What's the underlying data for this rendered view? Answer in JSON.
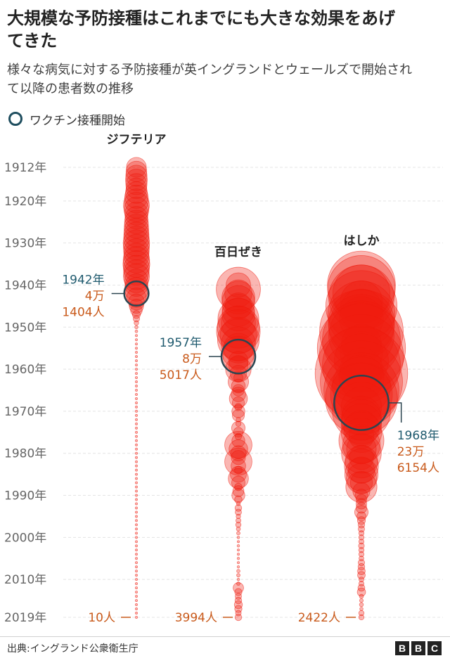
{
  "title": "大規模な予防接種はこれまでにも大きな効果をあげてきた",
  "subtitle": "様々な病気に対する予防接種が英イングランドとウェールズで開始されて以降の患者数の推移",
  "legend": {
    "label": "ワクチン接種開始"
  },
  "source": "出典:イングランド公衆衛生庁",
  "logo": [
    "B",
    "B",
    "C"
  ],
  "colors": {
    "bubble": "#ee1c0e",
    "annotation_blue": "#1f5a6e",
    "annotation_orange": "#c95a1b",
    "ring": "#2c4550",
    "axis_text": "#666666"
  },
  "chart_data": {
    "type": "scatter",
    "yaxis": {
      "ticks": [
        1912,
        1920,
        1930,
        1940,
        1950,
        1960,
        1970,
        1980,
        1990,
        2000,
        2010,
        2019
      ],
      "tick_labels": [
        "1912年",
        "1920年",
        "1930年",
        "1940年",
        "1950年",
        "1960年",
        "1970年",
        "1980年",
        "1990年",
        "2000年",
        "2010年",
        "2019年"
      ],
      "ylim": [
        1912,
        2019
      ]
    },
    "series": [
      {
        "name": "ジフテリア",
        "vaccine_year": 1942,
        "vaccine_label": [
          "1942年",
          "4万",
          "1404人"
        ],
        "end_label": "10人",
        "points": [
          [
            1912,
            35000
          ],
          [
            1913,
            38000
          ],
          [
            1914,
            40000
          ],
          [
            1915,
            42000
          ],
          [
            1916,
            40000
          ],
          [
            1917,
            38000
          ],
          [
            1918,
            42000
          ],
          [
            1919,
            48000
          ],
          [
            1920,
            52000
          ],
          [
            1921,
            60000
          ],
          [
            1922,
            55000
          ],
          [
            1923,
            48000
          ],
          [
            1924,
            46000
          ],
          [
            1925,
            50000
          ],
          [
            1926,
            52000
          ],
          [
            1927,
            54000
          ],
          [
            1928,
            56000
          ],
          [
            1929,
            58000
          ],
          [
            1930,
            62000
          ],
          [
            1931,
            60000
          ],
          [
            1932,
            58000
          ],
          [
            1933,
            56000
          ],
          [
            1934,
            62000
          ],
          [
            1935,
            64000
          ],
          [
            1936,
            60000
          ],
          [
            1937,
            58000
          ],
          [
            1938,
            60000
          ],
          [
            1939,
            50000
          ],
          [
            1940,
            45000
          ],
          [
            1941,
            50000
          ],
          [
            1942,
            41404
          ],
          [
            1943,
            34000
          ],
          [
            1944,
            23000
          ],
          [
            1945,
            18000
          ],
          [
            1946,
            12000
          ],
          [
            1947,
            5600
          ],
          [
            1948,
            3600
          ],
          [
            1949,
            1900
          ],
          [
            1950,
            960
          ],
          [
            1951,
            660
          ],
          [
            1952,
            380
          ],
          [
            1953,
            260
          ],
          [
            1954,
            180
          ],
          [
            1955,
            160
          ],
          [
            1956,
            53
          ],
          [
            1957,
            37
          ],
          [
            1958,
            80
          ],
          [
            1959,
            102
          ],
          [
            1960,
            49
          ],
          [
            1961,
            51
          ],
          [
            1962,
            16
          ],
          [
            1963,
            33
          ],
          [
            1964,
            20
          ],
          [
            1965,
            25
          ],
          [
            1966,
            12
          ],
          [
            1967,
            10
          ],
          [
            1968,
            15
          ],
          [
            1969,
            11
          ],
          [
            1970,
            22
          ],
          [
            1971,
            16
          ],
          [
            1972,
            5
          ],
          [
            1973,
            2
          ],
          [
            1974,
            6
          ],
          [
            1975,
            5
          ],
          [
            1976,
            3
          ],
          [
            1977,
            4
          ],
          [
            1978,
            5
          ],
          [
            1979,
            2
          ],
          [
            1980,
            5
          ],
          [
            1981,
            3
          ],
          [
            1982,
            2
          ],
          [
            1983,
            5
          ],
          [
            1984,
            3
          ],
          [
            1985,
            2
          ],
          [
            1986,
            4
          ],
          [
            1987,
            3
          ],
          [
            1988,
            2
          ],
          [
            1989,
            3
          ],
          [
            1990,
            2
          ],
          [
            1991,
            3
          ],
          [
            1992,
            4
          ],
          [
            1993,
            2
          ],
          [
            1994,
            3
          ],
          [
            1995,
            2
          ],
          [
            1996,
            4
          ],
          [
            1997,
            3
          ],
          [
            1998,
            2
          ],
          [
            1999,
            3
          ],
          [
            2000,
            3
          ],
          [
            2001,
            4
          ],
          [
            2002,
            3
          ],
          [
            2003,
            4
          ],
          [
            2004,
            3
          ],
          [
            2005,
            4
          ],
          [
            2006,
            5
          ],
          [
            2007,
            5
          ],
          [
            2008,
            6
          ],
          [
            2009,
            7
          ],
          [
            2010,
            8
          ],
          [
            2011,
            9
          ],
          [
            2012,
            8
          ],
          [
            2013,
            9
          ],
          [
            2014,
            9
          ],
          [
            2015,
            10
          ],
          [
            2016,
            9
          ],
          [
            2017,
            10
          ],
          [
            2018,
            10
          ],
          [
            2019,
            10
          ]
        ]
      },
      {
        "name": "百日ぜき",
        "vaccine_year": 1957,
        "vaccine_label": [
          "1957年",
          "8万",
          "5017人"
        ],
        "end_label": "3994人",
        "points": [
          [
            1940,
            53500
          ],
          [
            1941,
            173000
          ],
          [
            1942,
            66000
          ],
          [
            1943,
            96000
          ],
          [
            1944,
            95000
          ],
          [
            1945,
            62000
          ],
          [
            1946,
            92000
          ],
          [
            1947,
            95000
          ],
          [
            1948,
            148000
          ],
          [
            1949,
            104000
          ],
          [
            1950,
            157000
          ],
          [
            1951,
            169000
          ],
          [
            1952,
            118000
          ],
          [
            1953,
            154000
          ],
          [
            1954,
            104000
          ],
          [
            1955,
            79000
          ],
          [
            1956,
            92000
          ],
          [
            1957,
            85017
          ],
          [
            1958,
            33000
          ],
          [
            1959,
            33000
          ],
          [
            1960,
            58000
          ],
          [
            1961,
            24000
          ],
          [
            1962,
            7500
          ],
          [
            1963,
            37000
          ],
          [
            1964,
            17000
          ],
          [
            1965,
            12000
          ],
          [
            1966,
            19000
          ],
          [
            1967,
            29000
          ],
          [
            1968,
            13000
          ],
          [
            1969,
            4800
          ],
          [
            1970,
            15000
          ],
          [
            1971,
            13000
          ],
          [
            1972,
            1900
          ],
          [
            1973,
            2400
          ],
          [
            1974,
            16000
          ],
          [
            1975,
            8600
          ],
          [
            1976,
            4000
          ],
          [
            1977,
            15000
          ],
          [
            1978,
            66000
          ],
          [
            1979,
            31000
          ],
          [
            1980,
            21000
          ],
          [
            1981,
            18000
          ],
          [
            1982,
            66000
          ],
          [
            1983,
            19000
          ],
          [
            1984,
            5200
          ],
          [
            1985,
            23000
          ],
          [
            1986,
            36000
          ],
          [
            1987,
            16000
          ],
          [
            1988,
            5000
          ],
          [
            1989,
            11000
          ],
          [
            1990,
            15000
          ],
          [
            1991,
            5000
          ],
          [
            1992,
            1300
          ],
          [
            1993,
            4000
          ],
          [
            1994,
            3500
          ],
          [
            1995,
            1800
          ],
          [
            1996,
            2200
          ],
          [
            1997,
            2500
          ],
          [
            1998,
            1500
          ],
          [
            1999,
            1100
          ],
          [
            2000,
            600
          ],
          [
            2001,
            450
          ],
          [
            2002,
            560
          ],
          [
            2003,
            440
          ],
          [
            2004,
            480
          ],
          [
            2005,
            530
          ],
          [
            2006,
            460
          ],
          [
            2007,
            510
          ],
          [
            2008,
            1000
          ],
          [
            2009,
            1100
          ],
          [
            2010,
            540
          ],
          [
            2011,
            1100
          ],
          [
            2012,
            9700
          ],
          [
            2013,
            4600
          ],
          [
            2014,
            3600
          ],
          [
            2015,
            4000
          ],
          [
            2016,
            5800
          ],
          [
            2017,
            4700
          ],
          [
            2018,
            2900
          ],
          [
            2019,
            3994
          ]
        ]
      },
      {
        "name": "はしか",
        "vaccine_year": 1968,
        "vaccine_label": [
          "1968年",
          "23万",
          "6154人"
        ],
        "end_label": "2422人",
        "points": [
          [
            1940,
            410000
          ],
          [
            1941,
            405000
          ],
          [
            1942,
            290000
          ],
          [
            1943,
            380000
          ],
          [
            1944,
            158000
          ],
          [
            1945,
            450000
          ],
          [
            1946,
            160000
          ],
          [
            1947,
            400000
          ],
          [
            1948,
            170000
          ],
          [
            1949,
            390000
          ],
          [
            1950,
            380000
          ],
          [
            1951,
            620000
          ],
          [
            1952,
            380000
          ],
          [
            1953,
            540000
          ],
          [
            1954,
            140000
          ],
          [
            1955,
            690000
          ],
          [
            1956,
            160000
          ],
          [
            1957,
            630000
          ],
          [
            1958,
            260000
          ],
          [
            1959,
            540000
          ],
          [
            1960,
            160000
          ],
          [
            1961,
            760000
          ],
          [
            1962,
            180000
          ],
          [
            1963,
            600000
          ],
          [
            1964,
            300000
          ],
          [
            1965,
            500000
          ],
          [
            1966,
            340000
          ],
          [
            1967,
            460000
          ],
          [
            1968,
            236154
          ],
          [
            1969,
            145000
          ],
          [
            1970,
            300000
          ],
          [
            1971,
            135000
          ],
          [
            1972,
            145000
          ],
          [
            1973,
            145000
          ],
          [
            1974,
            110000
          ],
          [
            1975,
            145000
          ],
          [
            1976,
            55000
          ],
          [
            1977,
            180000
          ],
          [
            1978,
            125000
          ],
          [
            1979,
            78000
          ],
          [
            1980,
            140000
          ],
          [
            1981,
            53000
          ],
          [
            1982,
            94000
          ],
          [
            1983,
            103000
          ],
          [
            1984,
            62000
          ],
          [
            1985,
            98000
          ],
          [
            1986,
            82000
          ],
          [
            1987,
            43000
          ],
          [
            1988,
            86000
          ],
          [
            1989,
            26000
          ],
          [
            1990,
            14000
          ],
          [
            1991,
            10000
          ],
          [
            1992,
            10000
          ],
          [
            1993,
            10000
          ],
          [
            1994,
            16000
          ],
          [
            1995,
            7500
          ],
          [
            1996,
            5600
          ],
          [
            1997,
            3900
          ],
          [
            1998,
            3600
          ],
          [
            1999,
            2400
          ],
          [
            2000,
            2400
          ],
          [
            2001,
            2300
          ],
          [
            2002,
            3000
          ],
          [
            2003,
            2500
          ],
          [
            2004,
            2400
          ],
          [
            2005,
            2100
          ],
          [
            2006,
            3700
          ],
          [
            2007,
            4000
          ],
          [
            2008,
            5100
          ],
          [
            2009,
            5200
          ],
          [
            2010,
            2200
          ],
          [
            2011,
            2300
          ],
          [
            2012,
            4200
          ],
          [
            2013,
            6200
          ],
          [
            2014,
            1500
          ],
          [
            2015,
            1200
          ],
          [
            2016,
            1400
          ],
          [
            2017,
            1000
          ],
          [
            2018,
            2500
          ],
          [
            2019,
            2422
          ]
        ]
      }
    ]
  }
}
